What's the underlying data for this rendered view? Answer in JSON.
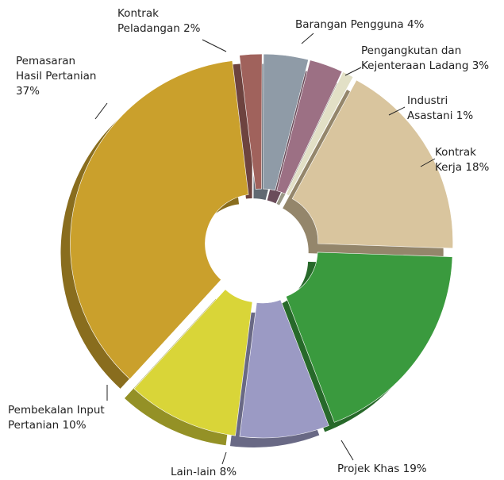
{
  "chart_data": {
    "type": "donut",
    "categories": [
      "Kontrak Peladangan",
      "Barangan Pengguna",
      "Pengangkutan dan Kejenteraan Ladang",
      "Industri Asastani",
      "Kontrak Kerja",
      "Projek Khas",
      "Lain-lain",
      "Pembekalan Input Pertanian",
      "Pemasaran Hasil Pertanian"
    ],
    "values": [
      2,
      4,
      3,
      1,
      18,
      19,
      8,
      10,
      37
    ],
    "value_labels": [
      "2%",
      "4%",
      "3%",
      "1%",
      "18%",
      "19%",
      "8%",
      "10%",
      "37%"
    ],
    "colors": [
      "#a0625c",
      "#8f9ba7",
      "#9c7084",
      "#e2e0c6",
      "#d9c59e",
      "#3a9a3e",
      "#9b9ac4",
      "#d9d538",
      "#caa02c"
    ]
  }
}
